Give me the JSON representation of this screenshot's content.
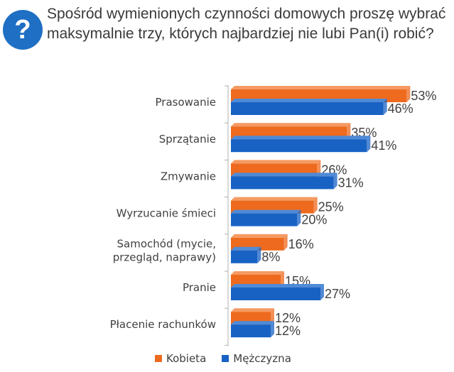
{
  "title": "Spośród wymienionych czynności domowych proszę wybrać maksymalnie trzy, których najbardziej nie lubi Pan(i) robić?",
  "badge_icon": "question-icon",
  "badge_text": "?",
  "colors": {
    "kobieta": "#ed6a1e",
    "kobieta_top": "#f59a62",
    "mezczyzna": "#1862c4",
    "mezczyzna_top": "#4f8ad6",
    "axis": "#b0b0b0",
    "badge": "#1f6fc4"
  },
  "chart_data": {
    "type": "bar",
    "orientation": "horizontal",
    "title": "Spośród wymienionych czynności domowych proszę wybrać maksymalnie trzy, których najbardziej nie lubi Pan(i) robić?",
    "categories": [
      [
        "Prasowanie"
      ],
      [
        "Sprzątanie"
      ],
      [
        "Zmywanie"
      ],
      [
        "Wyrzucanie śmieci"
      ],
      [
        "Samochód (mycie,",
        "przegląd, naprawy)"
      ],
      [
        "Pranie"
      ],
      [
        "Płacenie rachunków"
      ]
    ],
    "series": [
      {
        "name": "Kobieta",
        "values": [
          53,
          35,
          26,
          25,
          16,
          15,
          12
        ],
        "labels": [
          "53%",
          "35%",
          "26%",
          "25%",
          "16%",
          "15%",
          "12%"
        ]
      },
      {
        "name": "Mężczyzna",
        "values": [
          46,
          41,
          31,
          20,
          8,
          27,
          12
        ],
        "labels": [
          "46%",
          "41%",
          "31%",
          "20%",
          "8%",
          "27%",
          "12%"
        ]
      }
    ],
    "xlim": [
      0,
      60
    ],
    "legend_position": "bottom"
  }
}
